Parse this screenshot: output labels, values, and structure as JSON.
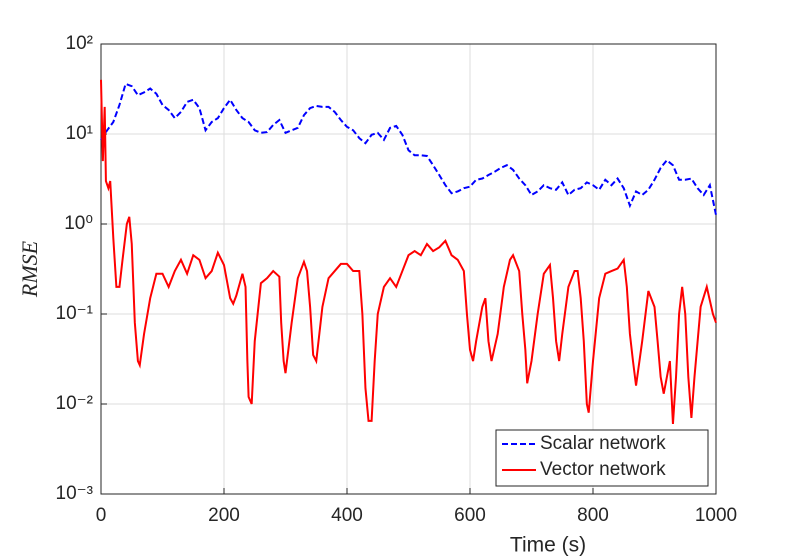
{
  "chart_data": {
    "type": "line",
    "ylabel": "RMSE",
    "xlabel": "Time (s)",
    "log_y": true,
    "grid": true,
    "legend_position": "lower right",
    "xlim": [
      0,
      1000
    ],
    "xticks": [
      0,
      200,
      400,
      600,
      800,
      1000
    ],
    "ylim": [
      0.001,
      100
    ],
    "yticks": [
      {
        "value": 0.001,
        "label": "10⁻³"
      },
      {
        "value": 0.01,
        "label": "10⁻²"
      },
      {
        "value": 0.1,
        "label": "10⁻¹"
      },
      {
        "value": 1,
        "label": "10⁰"
      },
      {
        "value": 10,
        "label": "10¹"
      },
      {
        "value": 100,
        "label": "10²"
      }
    ],
    "series": [
      {
        "name": "Scalar network",
        "color": "#0000ff",
        "dash": "dashed",
        "x": [
          0,
          10,
          20,
          30,
          40,
          50,
          60,
          70,
          80,
          90,
          100,
          110,
          120,
          130,
          140,
          150,
          160,
          170,
          180,
          190,
          200,
          210,
          220,
          230,
          240,
          250,
          260,
          270,
          280,
          290,
          300,
          310,
          320,
          330,
          340,
          350,
          360,
          370,
          380,
          390,
          400,
          410,
          420,
          430,
          440,
          450,
          460,
          470,
          480,
          490,
          500,
          510,
          520,
          530,
          540,
          550,
          560,
          570,
          580,
          590,
          600,
          610,
          620,
          630,
          640,
          650,
          660,
          670,
          680,
          690,
          700,
          710,
          720,
          730,
          740,
          750,
          760,
          770,
          780,
          790,
          800,
          810,
          820,
          830,
          840,
          850,
          860,
          870,
          880,
          890,
          900,
          910,
          920,
          930,
          940,
          950,
          960,
          970,
          980,
          990,
          1000
        ],
        "values": [
          8.6,
          11,
          13.6,
          21,
          36,
          34,
          27,
          29,
          32,
          28,
          21,
          18.5,
          15,
          17.6,
          22.7,
          24,
          19.4,
          11,
          13.6,
          15,
          19.4,
          24,
          18.5,
          15,
          13.6,
          11,
          10.3,
          10.5,
          12.6,
          14.3,
          10.3,
          11,
          11.7,
          16.2,
          19.4,
          20.5,
          20,
          20,
          17.6,
          14.3,
          12,
          11,
          9,
          7.9,
          9.8,
          10.3,
          8.6,
          11.7,
          12.3,
          9.8,
          6.6,
          5.8,
          5.8,
          5.7,
          4.5,
          3.5,
          2.7,
          2.2,
          2.3,
          2.5,
          2.6,
          3.1,
          3.2,
          3.5,
          3.8,
          4.2,
          4.5,
          4.0,
          3.2,
          2.7,
          2.1,
          2.3,
          2.7,
          2.5,
          2.4,
          2.9,
          2.1,
          2.4,
          2.5,
          2.9,
          2.7,
          2.4,
          3.1,
          2.7,
          3.2,
          2.5,
          1.6,
          2.3,
          2.1,
          2.4,
          3.1,
          4.2,
          5.1,
          4.5,
          3.1,
          3.1,
          3.2,
          2.5,
          2.1,
          2.7,
          1.26
        ]
      },
      {
        "name": "Vector network",
        "color": "#ff0000",
        "dash": "solid",
        "x": [
          0,
          3,
          6,
          8,
          12,
          15,
          20,
          25,
          30,
          35,
          42,
          46,
          50,
          55,
          60,
          63,
          70,
          80,
          90,
          100,
          110,
          120,
          130,
          140,
          150,
          160,
          170,
          180,
          190,
          200,
          210,
          215,
          220,
          230,
          235,
          238,
          240,
          245,
          250,
          260,
          270,
          280,
          290,
          293,
          297,
          300,
          310,
          320,
          330,
          335,
          340,
          345,
          350,
          360,
          370,
          380,
          390,
          400,
          410,
          420,
          425,
          430,
          435,
          440,
          445,
          450,
          460,
          470,
          480,
          490,
          500,
          510,
          520,
          530,
          540,
          550,
          560,
          570,
          580,
          590,
          595,
          600,
          605,
          610,
          620,
          625,
          630,
          635,
          645,
          655,
          665,
          670,
          680,
          685,
          690,
          693,
          700,
          710,
          720,
          730,
          735,
          740,
          745,
          750,
          760,
          770,
          775,
          780,
          785,
          790,
          793,
          800,
          810,
          820,
          830,
          840,
          850,
          855,
          860,
          865,
          870,
          880,
          890,
          900,
          905,
          910,
          915,
          925,
          930,
          935,
          940,
          945,
          950,
          955,
          960,
          965,
          975,
          985,
          995,
          1000
        ],
        "values": [
          40,
          5,
          20,
          3,
          2.5,
          3,
          0.7,
          0.2,
          0.2,
          0.4,
          1.0,
          1.2,
          0.6,
          0.08,
          0.03,
          0.027,
          0.06,
          0.15,
          0.28,
          0.28,
          0.2,
          0.3,
          0.4,
          0.28,
          0.45,
          0.4,
          0.25,
          0.3,
          0.48,
          0.35,
          0.15,
          0.13,
          0.16,
          0.28,
          0.2,
          0.03,
          0.012,
          0.01,
          0.05,
          0.22,
          0.25,
          0.3,
          0.26,
          0.08,
          0.03,
          0.022,
          0.08,
          0.25,
          0.38,
          0.3,
          0.12,
          0.035,
          0.03,
          0.12,
          0.25,
          0.3,
          0.36,
          0.36,
          0.3,
          0.3,
          0.1,
          0.015,
          0.0065,
          0.0065,
          0.03,
          0.1,
          0.2,
          0.25,
          0.2,
          0.3,
          0.45,
          0.5,
          0.45,
          0.6,
          0.5,
          0.55,
          0.65,
          0.45,
          0.4,
          0.3,
          0.1,
          0.04,
          0.03,
          0.05,
          0.12,
          0.15,
          0.05,
          0.03,
          0.06,
          0.2,
          0.4,
          0.45,
          0.3,
          0.1,
          0.04,
          0.017,
          0.03,
          0.1,
          0.28,
          0.35,
          0.15,
          0.05,
          0.03,
          0.06,
          0.2,
          0.3,
          0.3,
          0.15,
          0.05,
          0.01,
          0.008,
          0.03,
          0.15,
          0.28,
          0.3,
          0.32,
          0.4,
          0.2,
          0.06,
          0.03,
          0.016,
          0.05,
          0.18,
          0.12,
          0.05,
          0.02,
          0.013,
          0.03,
          0.006,
          0.02,
          0.1,
          0.2,
          0.1,
          0.02,
          0.007,
          0.02,
          0.12,
          0.2,
          0.1,
          0.08
        ]
      }
    ]
  }
}
